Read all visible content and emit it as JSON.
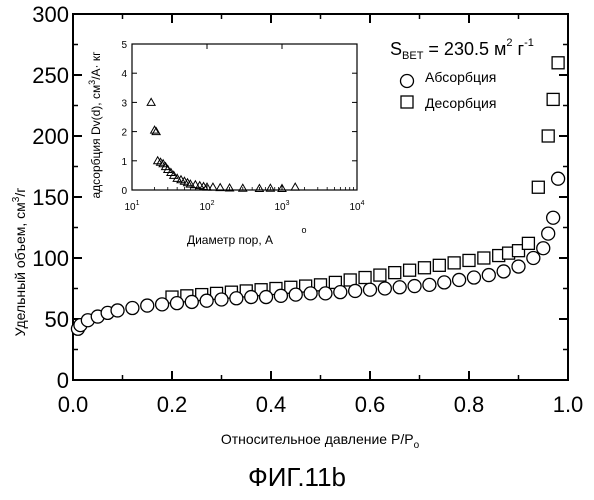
{
  "caption": "ФИГ.11b",
  "chart_data": [
    {
      "type": "scatter",
      "xlabel": "Относительное давление P/P",
      "xlabel_sub": "o",
      "ylabel": "Удельный объем, см",
      "ylabel_sup": "3",
      "ylabel_unit": "/г",
      "xlim": [
        0.0,
        1.0
      ],
      "ylim": [
        0,
        300
      ],
      "x_ticks": [
        "0.0",
        "0.2",
        "0.4",
        "0.6",
        "0.8",
        "1.0"
      ],
      "y_ticks": [
        "0",
        "50",
        "100",
        "150",
        "200",
        "250",
        "300"
      ],
      "annotation": {
        "prefix": "S",
        "sub": "BET",
        "value": "= 230.5 м",
        "sup1": "2",
        "mid": " г",
        "sup2": "-1"
      },
      "legend_position": "top-right",
      "series": [
        {
          "name": "Абсорбция",
          "marker": "circle",
          "x": [
            0.01,
            0.015,
            0.03,
            0.05,
            0.07,
            0.09,
            0.12,
            0.15,
            0.18,
            0.21,
            0.24,
            0.27,
            0.3,
            0.33,
            0.36,
            0.39,
            0.42,
            0.45,
            0.48,
            0.51,
            0.54,
            0.57,
            0.6,
            0.63,
            0.66,
            0.69,
            0.72,
            0.75,
            0.78,
            0.81,
            0.84,
            0.87,
            0.9,
            0.93,
            0.95,
            0.96,
            0.97,
            0.98
          ],
          "y": [
            42,
            45,
            49,
            52,
            55,
            57,
            59,
            61,
            62,
            63,
            64,
            65,
            66,
            67,
            68,
            68,
            69,
            70,
            71,
            71,
            72,
            73,
            74,
            75,
            76,
            77,
            78,
            80,
            82,
            84,
            86,
            89,
            93,
            100,
            108,
            120,
            133,
            165
          ]
        },
        {
          "name": "Десорбция",
          "marker": "square",
          "x": [
            0.2,
            0.23,
            0.26,
            0.29,
            0.32,
            0.35,
            0.38,
            0.41,
            0.44,
            0.47,
            0.5,
            0.53,
            0.56,
            0.59,
            0.62,
            0.65,
            0.68,
            0.71,
            0.74,
            0.77,
            0.8,
            0.83,
            0.86,
            0.88,
            0.9,
            0.92,
            0.94,
            0.96,
            0.97,
            0.98
          ],
          "y": [
            68,
            69,
            70,
            71,
            72,
            73,
            74,
            75,
            76,
            77,
            78,
            80,
            82,
            84,
            86,
            88,
            90,
            92,
            94,
            96,
            98,
            100,
            102,
            104,
            106,
            112,
            158,
            200,
            230,
            260
          ]
        }
      ]
    },
    {
      "type": "scatter",
      "xlabel": "Диаметр пор, A",
      "xlabel_accent": "o",
      "ylabel": "адсорбция Dv(d), см",
      "ylabel_sup": "3",
      "ylabel_unit": "/A· кг",
      "ylabel_accent": "o",
      "xscale": "log",
      "xlim": [
        10,
        10000
      ],
      "ylim": [
        0,
        5
      ],
      "x_ticks": [
        {
          "base": "10",
          "exp": "1"
        },
        {
          "base": "10",
          "exp": "2"
        },
        {
          "base": "10",
          "exp": "3"
        },
        {
          "base": "10",
          "exp": "4"
        }
      ],
      "y_ticks": [
        "0",
        "1",
        "2",
        "3",
        "4",
        "5"
      ],
      "series": [
        {
          "marker": "triangle",
          "x": [
            18,
            20,
            21,
            22,
            24,
            26,
            28,
            30,
            33,
            36,
            40,
            45,
            50,
            55,
            60,
            70,
            80,
            90,
            100,
            120,
            150,
            200,
            300,
            500,
            700,
            1000,
            1500
          ],
          "y": [
            3.0,
            2.05,
            2.0,
            1.0,
            0.95,
            0.9,
            0.8,
            0.7,
            0.6,
            0.5,
            0.4,
            0.35,
            0.3,
            0.25,
            0.2,
            0.18,
            0.15,
            0.12,
            0.1,
            0.1,
            0.08,
            0.07,
            0.06,
            0.05,
            0.06,
            0.05,
            0.1
          ]
        }
      ]
    }
  ]
}
